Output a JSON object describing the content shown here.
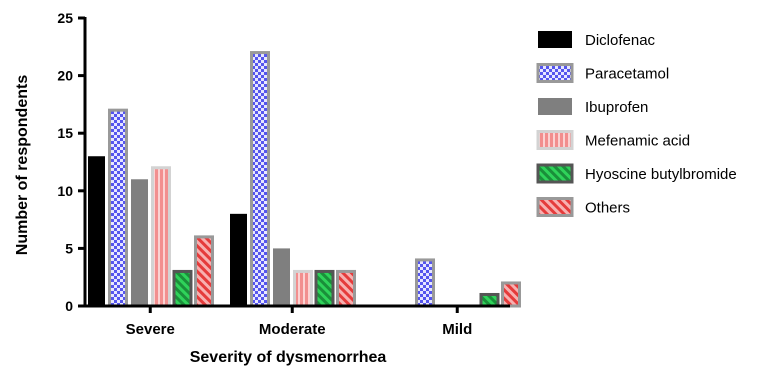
{
  "chart_data": {
    "type": "bar",
    "title": "",
    "xlabel": "Severity of dysmenorrhea",
    "ylabel": "Number of respondents",
    "ylim": [
      0,
      25
    ],
    "yticks": [
      "0",
      "5",
      "10",
      "15",
      "20",
      "25"
    ],
    "categories": [
      "Severe",
      "Moderate",
      "Mild"
    ],
    "series": [
      {
        "name": "Diclofenac",
        "values": [
          13,
          8,
          0
        ],
        "fill": "#000000",
        "border": "#000000",
        "pattern": "solid"
      },
      {
        "name": "Paracetamol",
        "values": [
          17,
          22,
          4
        ],
        "fill": "#6666ee",
        "border": "#999999",
        "pattern": "checker"
      },
      {
        "name": "Ibuprofen",
        "values": [
          11,
          5,
          0
        ],
        "fill": "#7f7f7f",
        "border": "#7f7f7f",
        "pattern": "solid"
      },
      {
        "name": "Mefenamic acid",
        "values": [
          12,
          3,
          0
        ],
        "fill": "#f4a8a8",
        "border": "#d3d3d3",
        "pattern": "vertical-stripes"
      },
      {
        "name": "Hyoscine butylbromide",
        "values": [
          3,
          3,
          1
        ],
        "fill": "#22b14c",
        "border": "#555555",
        "pattern": "diagonal"
      },
      {
        "name": "Others",
        "values": [
          6,
          3,
          2
        ],
        "fill": "#ee4444",
        "border": "#999999",
        "pattern": "diagonal"
      }
    ],
    "legend_position": "right",
    "grid": false
  }
}
